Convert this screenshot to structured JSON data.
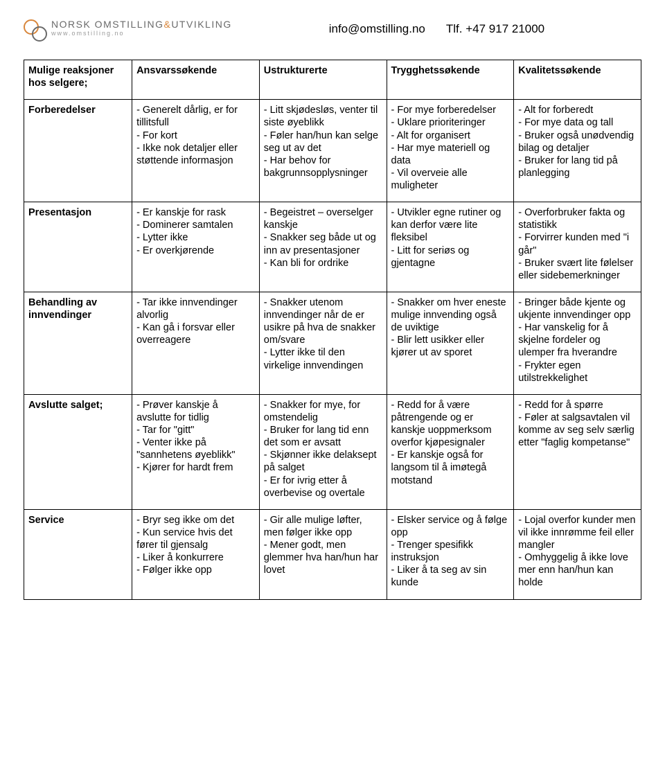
{
  "header": {
    "logo_top_gray1": "NORSK OMSTILLING",
    "logo_top_orange": "&",
    "logo_top_gray2": "UTVIKLING",
    "logo_sub": "www.omstilling.no",
    "email": "info@omstilling.no",
    "phone_label": "Tlf.",
    "phone": "+47 917 21000"
  },
  "table": {
    "corner": "Mulige reaksjoner hos selgere;",
    "columns": [
      "Ansvarssøkende",
      "Ustrukturerte",
      "Trygghetssøkende",
      "Kvalitetssøkende"
    ],
    "rows": [
      {
        "label": "Forberedelser",
        "cells": [
          "- Generelt dårlig, er for tillitsfull\n- For kort\n- Ikke nok detaljer eller støttende informasjon",
          "- Litt skjødesløs, venter til siste øyeblikk\n- Føler han/hun kan selge seg ut av det\n- Har behov for bakgrunnsopplysninger",
          "- For mye forberedelser\n- Uklare prioriteringer\n- Alt for organisert\n- Har mye materiell og data\n- Vil overveie alle muligheter",
          "- Alt for forberedt\n- For mye data og tall\n- Bruker også unødvendig bilag og detaljer\n- Bruker for lang tid på planlegging"
        ]
      },
      {
        "label": "Presentasjon",
        "cells": [
          "- Er kanskje for rask\n- Dominerer samtalen\n- Lytter ikke\n- Er overkjørende",
          "- Begeistret – overselger kanskje\n- Snakker seg både ut og inn av presentasjoner\n- Kan bli for ordrike",
          "- Utvikler egne rutiner og kan derfor være lite fleksibel\n- Litt for seriøs og gjentagne",
          "- Overforbruker fakta og statistikk\n- Forvirrer kunden med \"i går\"\n- Bruker svært lite følelser eller sidebemerkninger"
        ]
      },
      {
        "label": "Behandling av innvendinger",
        "cells": [
          "- Tar ikke innvendinger alvorlig\n- Kan gå i forsvar eller overreagere",
          "- Snakker utenom innvendinger når de er usikre på hva de snakker om/svare\n- Lytter ikke til den virkelige innvendingen",
          "- Snakker om hver eneste mulige innvending også de uviktige\n- Blir lett usikker eller kjører ut av sporet",
          "- Bringer både kjente og ukjente innvendinger opp\n- Har vanskelig for å skjelne fordeler og ulemper fra hverandre\n- Frykter egen utilstrekkelighet"
        ]
      },
      {
        "label": "Avslutte salget;",
        "cells": [
          "- Prøver kanskje å avslutte for tidlig\n- Tar for \"gitt\"\n- Venter ikke på \"sannhetens øyeblikk\"\n- Kjører for hardt frem",
          "- Snakker for mye, for omstendelig\n- Bruker for lang tid enn det som er avsatt\n- Skjønner ikke delaksept på salget\n- Er for ivrig etter å overbevise og overtale",
          "- Redd for å være påtrengende og er kanskje uoppmerksom overfor kjøpesignaler\n- Er kanskje også for langsom til å imøtegå motstand",
          "- Redd for å spørre\n- Føler at salgsavtalen vil komme av seg selv særlig etter \"faglig kompetanse\""
        ]
      },
      {
        "label": "Service",
        "cells": [
          "- Bryr seg ikke om det\n- Kun service hvis det fører til gjensalg\n- Liker å konkurrere\n- Følger ikke opp",
          "- Gir alle mulige løfter, men følger ikke opp\n- Mener godt, men glemmer hva han/hun har lovet",
          "- Elsker service og å følge opp\n- Trenger spesifikk instruksjon\n- Liker å ta seg av sin kunde",
          "- Lojal overfor kunder men vil ikke innrømme feil eller mangler\n- Omhyggelig å ikke love mer enn han/hun kan holde"
        ]
      }
    ]
  },
  "colors": {
    "text": "#000000",
    "border": "#000000",
    "logo_gray": "#6a6a6a",
    "logo_orange": "#d8863b",
    "logo_sub": "#9a9a9a",
    "background": "#ffffff"
  }
}
